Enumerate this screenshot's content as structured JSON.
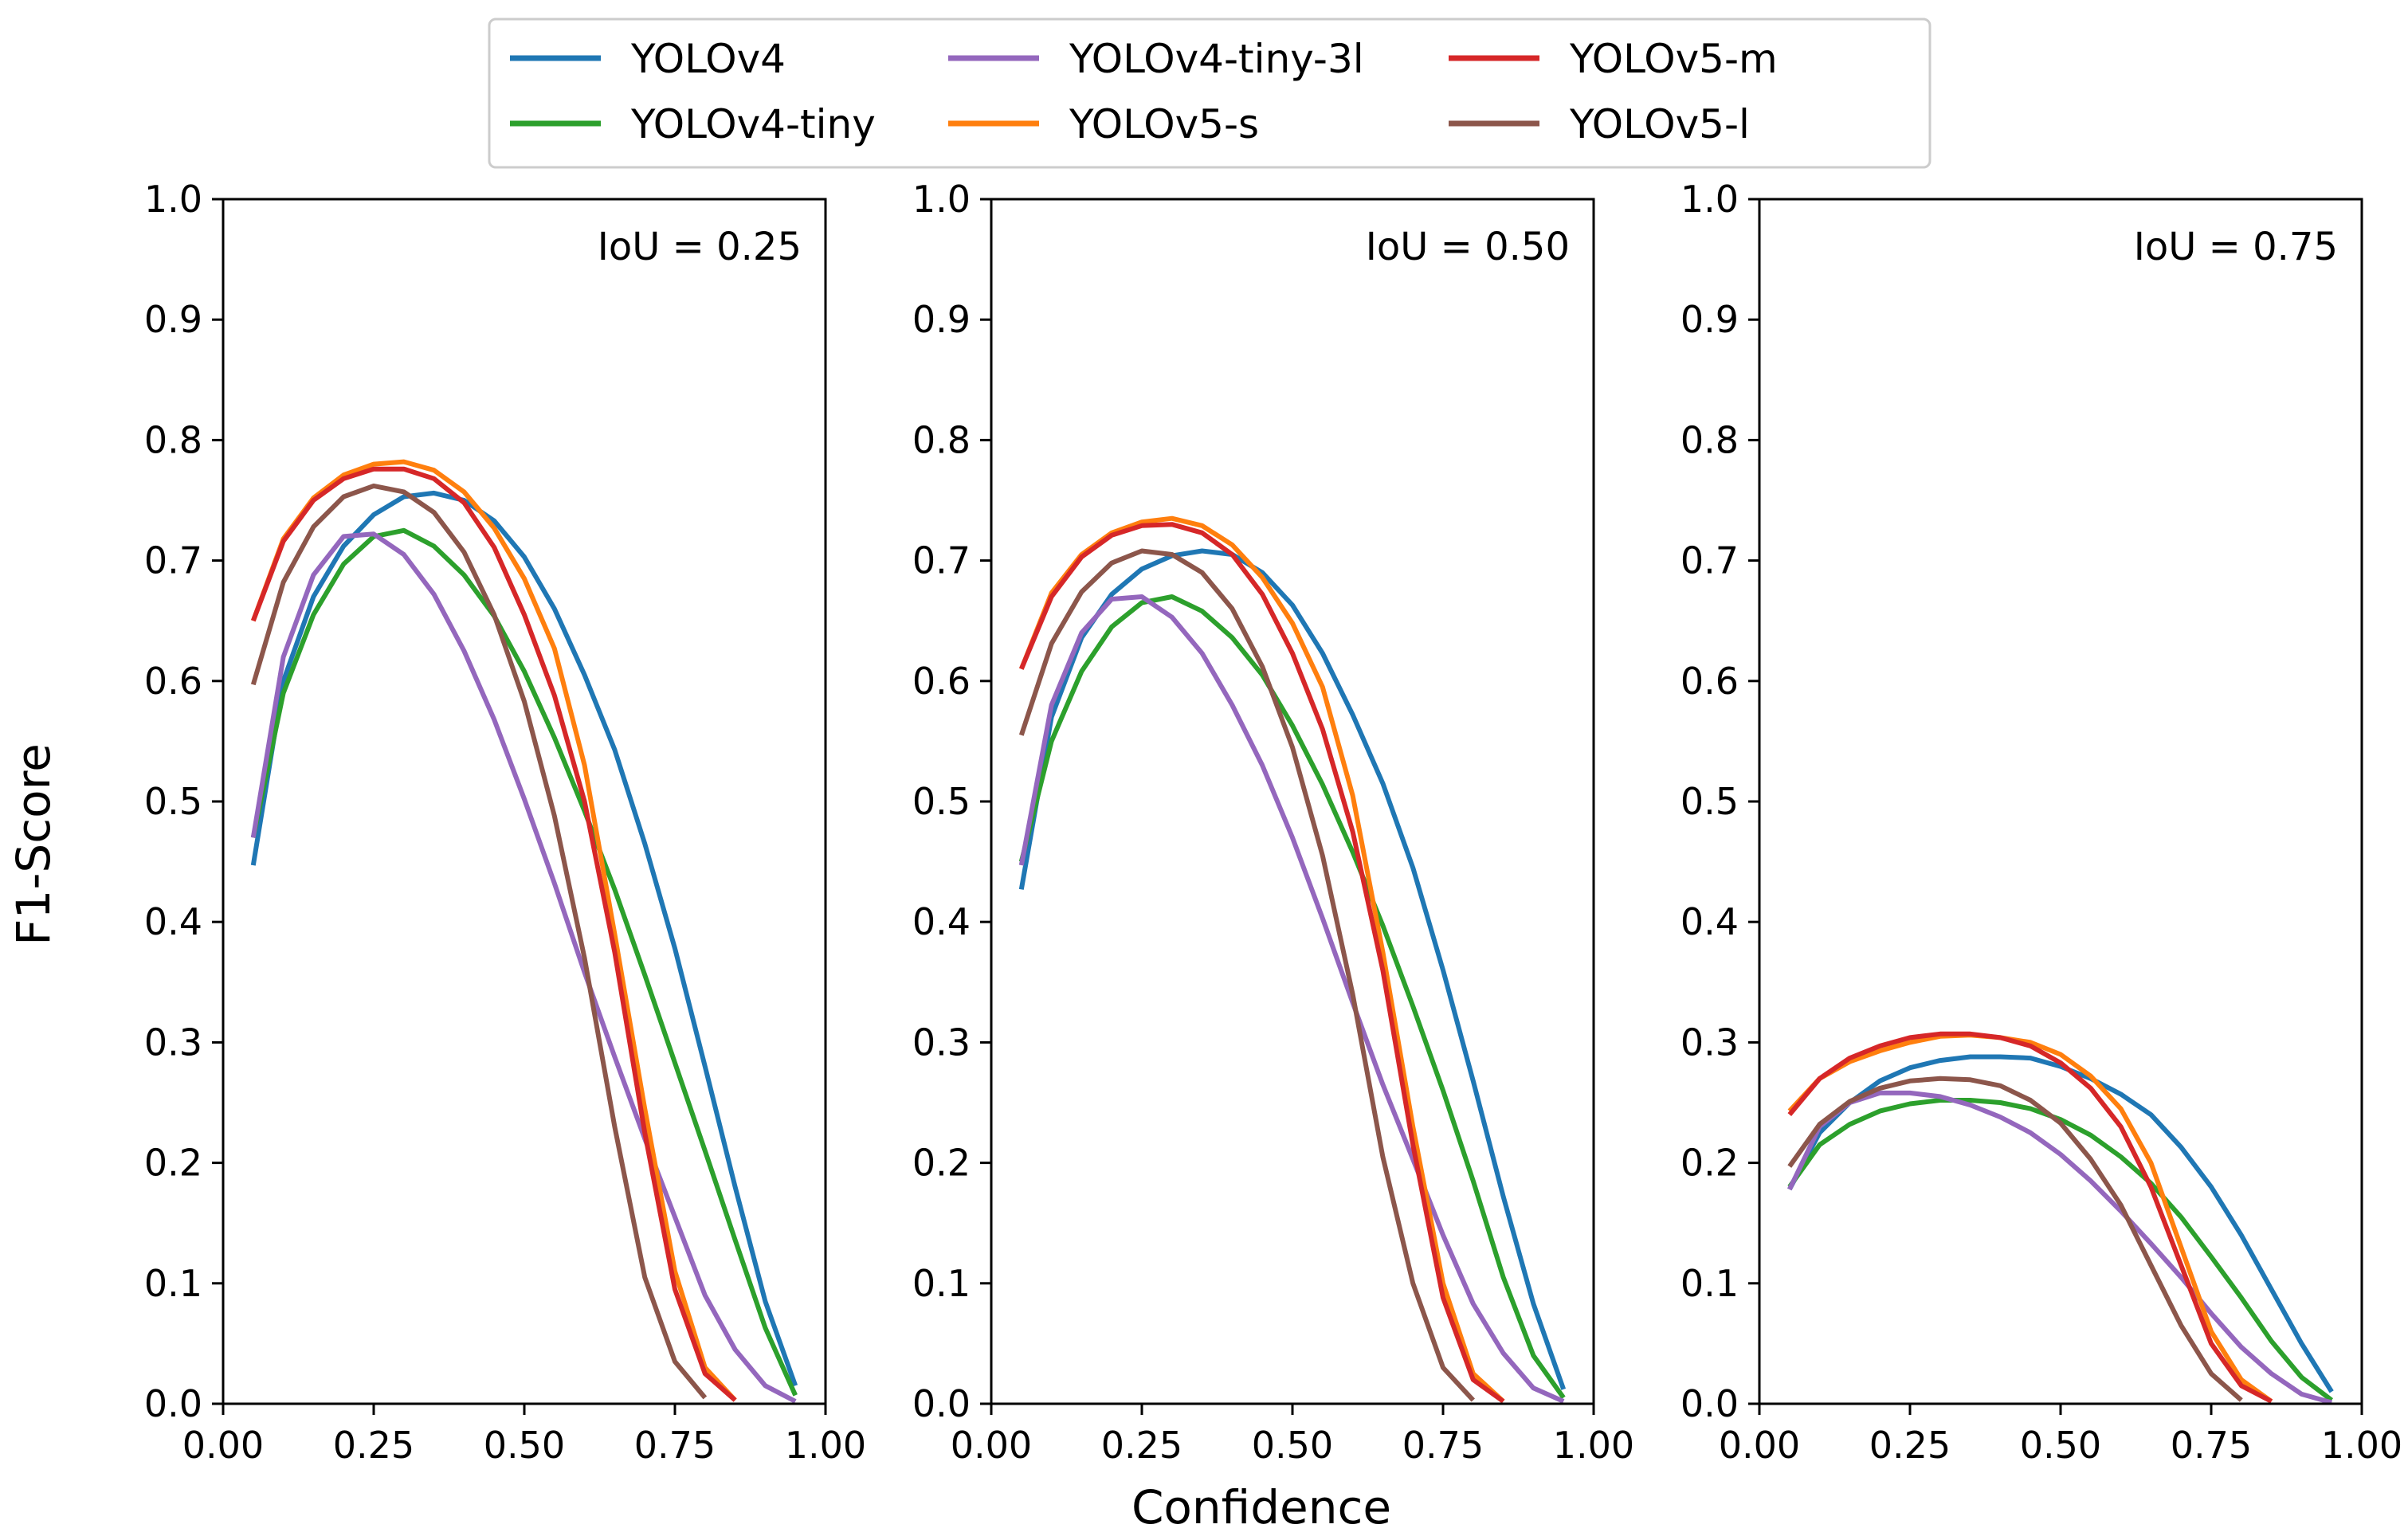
{
  "figure": {
    "xlabel": "Confidence",
    "ylabel": "F1-Score"
  },
  "legend": {
    "placement": "top-center",
    "entries": [
      {
        "name": "YOLOv4",
        "color": "#1f77b4"
      },
      {
        "name": "YOLOv4-tiny",
        "color": "#2ca02c"
      },
      {
        "name": "YOLOv4-tiny-3l",
        "color": "#9467bd"
      },
      {
        "name": "YOLOv5-s",
        "color": "#ff7f0e"
      },
      {
        "name": "YOLOv5-m",
        "color": "#d62728"
      },
      {
        "name": "YOLOv5-l",
        "color": "#8c564b"
      }
    ]
  },
  "chart_data": [
    {
      "type": "line",
      "annotation": "IoU = 0.25",
      "xlim": [
        0,
        1
      ],
      "ylim": [
        0,
        1
      ],
      "xticks": [
        "0.00",
        "0.25",
        "0.50",
        "0.75",
        "1.00"
      ],
      "yticks": [
        "0.0",
        "0.1",
        "0.2",
        "0.3",
        "0.4",
        "0.5",
        "0.6",
        "0.7",
        "0.8",
        "0.9",
        "1.0"
      ],
      "x": [
        0.05,
        0.1,
        0.15,
        0.2,
        0.25,
        0.3,
        0.35,
        0.4,
        0.45,
        0.5,
        0.55,
        0.6,
        0.65,
        0.7,
        0.75,
        0.8,
        0.85,
        0.9,
        0.95
      ],
      "series": [
        {
          "name": "YOLOv4",
          "color": "#1f77b4",
          "values": [
            0.447,
            0.6,
            0.67,
            0.712,
            0.738,
            0.753,
            0.756,
            0.75,
            0.733,
            0.703,
            0.66,
            0.605,
            0.543,
            0.465,
            0.378,
            0.28,
            0.18,
            0.085,
            0.015
          ]
        },
        {
          "name": "YOLOv4-tiny",
          "color": "#2ca02c",
          "values": [
            0.47,
            0.59,
            0.655,
            0.697,
            0.72,
            0.725,
            0.712,
            0.688,
            0.654,
            0.608,
            0.553,
            0.492,
            0.427,
            0.356,
            0.283,
            0.21,
            0.136,
            0.063,
            0.007
          ]
        },
        {
          "name": "YOLOv4-tiny-3l",
          "color": "#9467bd",
          "values": [
            0.47,
            0.62,
            0.688,
            0.72,
            0.722,
            0.705,
            0.672,
            0.625,
            0.568,
            0.502,
            0.432,
            0.358,
            0.288,
            0.22,
            0.155,
            0.09,
            0.045,
            0.015,
            0.002
          ]
        },
        {
          "name": "YOLOv5-s",
          "color": "#ff7f0e",
          "values": [
            0.65,
            0.718,
            0.752,
            0.771,
            0.78,
            0.782,
            0.775,
            0.757,
            0.727,
            0.685,
            0.627,
            0.53,
            0.39,
            0.245,
            0.11,
            0.03,
            0.003,
            null,
            null
          ]
        },
        {
          "name": "YOLOv5-m",
          "color": "#d62728",
          "values": [
            0.65,
            0.716,
            0.75,
            0.768,
            0.776,
            0.776,
            0.768,
            0.748,
            0.711,
            0.655,
            0.588,
            0.5,
            0.375,
            0.225,
            0.095,
            0.025,
            0.003,
            null,
            null
          ]
        },
        {
          "name": "YOLOv5-l",
          "color": "#8c564b",
          "values": [
            0.597,
            0.682,
            0.728,
            0.753,
            0.762,
            0.757,
            0.74,
            0.707,
            0.655,
            0.583,
            0.488,
            0.37,
            0.23,
            0.105,
            0.035,
            0.005,
            null,
            null,
            null
          ]
        }
      ]
    },
    {
      "type": "line",
      "annotation": "IoU = 0.50",
      "xlim": [
        0,
        1
      ],
      "ylim": [
        0,
        1
      ],
      "xticks": [
        "0.00",
        "0.25",
        "0.50",
        "0.75",
        "1.00"
      ],
      "yticks": [
        "0.0",
        "0.1",
        "0.2",
        "0.3",
        "0.4",
        "0.5",
        "0.6",
        "0.7",
        "0.8",
        "0.9",
        "1.0"
      ],
      "x": [
        0.05,
        0.1,
        0.15,
        0.2,
        0.25,
        0.3,
        0.35,
        0.4,
        0.45,
        0.5,
        0.55,
        0.6,
        0.65,
        0.7,
        0.75,
        0.8,
        0.85,
        0.9,
        0.95
      ],
      "series": [
        {
          "name": "YOLOv4",
          "color": "#1f77b4",
          "values": [
            0.427,
            0.57,
            0.636,
            0.672,
            0.693,
            0.704,
            0.708,
            0.705,
            0.69,
            0.663,
            0.623,
            0.572,
            0.515,
            0.445,
            0.36,
            0.268,
            0.172,
            0.083,
            0.012
          ]
        },
        {
          "name": "YOLOv4-tiny",
          "color": "#2ca02c",
          "values": [
            0.45,
            0.55,
            0.608,
            0.645,
            0.665,
            0.67,
            0.658,
            0.636,
            0.605,
            0.563,
            0.514,
            0.458,
            0.397,
            0.33,
            0.26,
            0.185,
            0.105,
            0.04,
            0.005
          ]
        },
        {
          "name": "YOLOv4-tiny-3l",
          "color": "#9467bd",
          "values": [
            0.447,
            0.58,
            0.64,
            0.668,
            0.67,
            0.653,
            0.623,
            0.58,
            0.53,
            0.47,
            0.403,
            0.333,
            0.265,
            0.203,
            0.14,
            0.083,
            0.042,
            0.013,
            0.002
          ]
        },
        {
          "name": "YOLOv5-s",
          "color": "#ff7f0e",
          "values": [
            0.61,
            0.673,
            0.705,
            0.723,
            0.732,
            0.735,
            0.729,
            0.713,
            0.686,
            0.648,
            0.595,
            0.505,
            0.375,
            0.23,
            0.1,
            0.025,
            0.002,
            null,
            null
          ]
        },
        {
          "name": "YOLOv5-m",
          "color": "#d62728",
          "values": [
            0.61,
            0.67,
            0.703,
            0.721,
            0.729,
            0.73,
            0.723,
            0.705,
            0.672,
            0.623,
            0.56,
            0.475,
            0.36,
            0.215,
            0.088,
            0.02,
            0.002,
            null,
            null
          ]
        },
        {
          "name": "YOLOv5-l",
          "color": "#8c564b",
          "values": [
            0.555,
            0.631,
            0.674,
            0.698,
            0.708,
            0.705,
            0.69,
            0.66,
            0.612,
            0.545,
            0.455,
            0.34,
            0.205,
            0.1,
            0.03,
            0.003,
            null,
            null,
            null
          ]
        }
      ]
    },
    {
      "type": "line",
      "annotation": "IoU = 0.75",
      "xlim": [
        0,
        1
      ],
      "ylim": [
        0,
        1
      ],
      "xticks": [
        "0.00",
        "0.25",
        "0.50",
        "0.75",
        "1.00"
      ],
      "yticks": [
        "0.0",
        "0.1",
        "0.2",
        "0.3",
        "0.4",
        "0.5",
        "0.6",
        "0.7",
        "0.8",
        "0.9",
        "1.0"
      ],
      "x": [
        0.05,
        0.1,
        0.15,
        0.2,
        0.25,
        0.3,
        0.35,
        0.4,
        0.45,
        0.5,
        0.55,
        0.6,
        0.65,
        0.7,
        0.75,
        0.8,
        0.85,
        0.9,
        0.95
      ],
      "series": [
        {
          "name": "YOLOv4",
          "color": "#1f77b4",
          "values": [
            0.178,
            0.225,
            0.25,
            0.268,
            0.279,
            0.285,
            0.288,
            0.288,
            0.287,
            0.28,
            0.27,
            0.257,
            0.24,
            0.213,
            0.18,
            0.14,
            0.095,
            0.05,
            0.01
          ]
        },
        {
          "name": "YOLOv4-tiny",
          "color": "#2ca02c",
          "values": [
            0.18,
            0.215,
            0.232,
            0.243,
            0.249,
            0.252,
            0.252,
            0.25,
            0.245,
            0.236,
            0.223,
            0.205,
            0.183,
            0.155,
            0.122,
            0.088,
            0.052,
            0.022,
            0.003
          ]
        },
        {
          "name": "YOLOv4-tiny-3l",
          "color": "#9467bd",
          "values": [
            0.178,
            0.23,
            0.25,
            0.258,
            0.258,
            0.255,
            0.248,
            0.238,
            0.225,
            0.207,
            0.185,
            0.16,
            0.133,
            0.105,
            0.075,
            0.047,
            0.025,
            0.008,
            0.001
          ]
        },
        {
          "name": "YOLOv5-s",
          "color": "#ff7f0e",
          "values": [
            0.243,
            0.27,
            0.284,
            0.293,
            0.3,
            0.305,
            0.306,
            0.304,
            0.3,
            0.29,
            0.272,
            0.245,
            0.2,
            0.13,
            0.06,
            0.02,
            0.002,
            null,
            null
          ]
        },
        {
          "name": "YOLOv5-m",
          "color": "#d62728",
          "values": [
            0.24,
            0.27,
            0.287,
            0.297,
            0.304,
            0.307,
            0.307,
            0.304,
            0.297,
            0.283,
            0.262,
            0.23,
            0.18,
            0.115,
            0.05,
            0.015,
            0.002,
            null,
            null
          ]
        },
        {
          "name": "YOLOv5-l",
          "color": "#8c564b",
          "values": [
            0.197,
            0.232,
            0.251,
            0.262,
            0.268,
            0.27,
            0.269,
            0.264,
            0.252,
            0.233,
            0.203,
            0.165,
            0.115,
            0.065,
            0.025,
            0.003,
            null,
            null,
            null
          ]
        }
      ]
    }
  ]
}
